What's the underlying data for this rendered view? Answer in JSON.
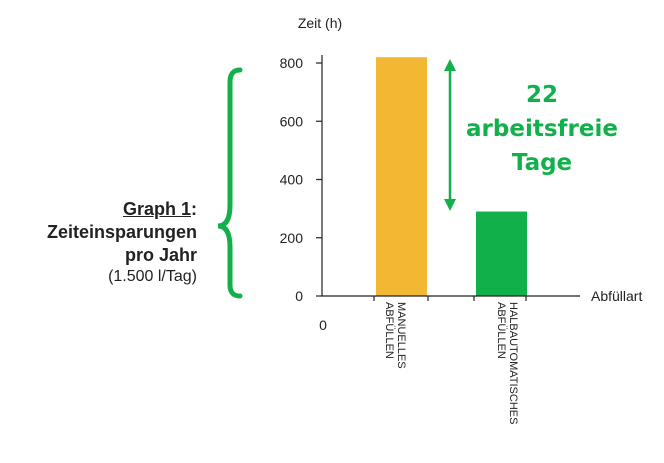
{
  "caption": {
    "title_underlined": "Graph 1",
    "title_colon": ":",
    "line2": "Zeiteinsparungen",
    "line3": "pro Jahr",
    "note": "(1.500 l/Tag)"
  },
  "annotation": {
    "line1": "22",
    "line2": "arbeitsfreie",
    "line3": "Tage"
  },
  "colors": {
    "bar_manual": "#f2b733",
    "bar_semi": "#12b04a",
    "bracket": "#12b04a",
    "arrow": "#12b04a"
  },
  "chart_data": {
    "type": "bar",
    "categories": [
      "MANUELLES ABFÜLLEN",
      "HALBAUTOMATISCHES ABFÜLLEN"
    ],
    "category_lines": [
      [
        "MANUELLES",
        "ABFÜLLEN"
      ],
      [
        "HALBAUTOMATISCHES",
        "ABFÜLLEN"
      ]
    ],
    "values": [
      820,
      290
    ],
    "ylabel": "Zeit (h)",
    "xlabel": "Abfüllart",
    "origin_label": "0",
    "ylim": [
      0,
      800
    ],
    "yticks": [
      0,
      200,
      400,
      600,
      800
    ],
    "grid": false
  }
}
